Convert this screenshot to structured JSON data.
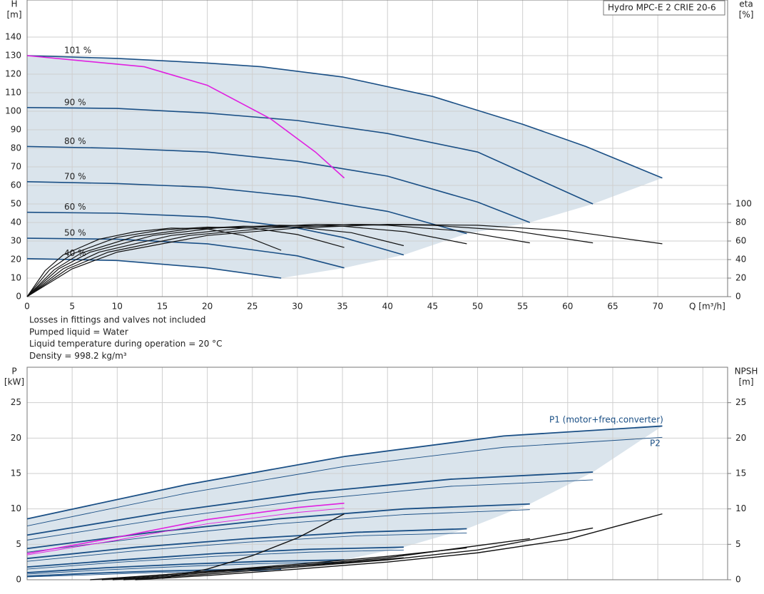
{
  "chart_data": [
    {
      "type": "line",
      "title": "Hydro MPC-E 2 CRIE 20-6",
      "ylabel": [
        "H",
        "[m]"
      ],
      "y2label": [
        "eta",
        "[%]"
      ],
      "xlabel": "Q [m³/h]",
      "xlim": [
        0,
        77.75
      ],
      "xticks": [
        0,
        5,
        10,
        15,
        20,
        25,
        30,
        35,
        40,
        45,
        50,
        55,
        60,
        65,
        70
      ],
      "xtick_labels": true,
      "ylim": [
        0,
        160
      ],
      "yticks": [
        0,
        10,
        20,
        30,
        40,
        50,
        60,
        70,
        80,
        90,
        100,
        110,
        120,
        130,
        140
      ],
      "y2lim": [
        0,
        320
      ],
      "y2ticks": [
        0,
        20,
        40,
        60,
        80,
        100
      ],
      "grid": true,
      "range_color": "#d3dfe9",
      "notes": [
        "Losses in fittings and valves not included",
        "Pumped liquid = Water",
        "Liquid temperature during operation = 20 °C",
        "Density = 998.2 kg/m³"
      ],
      "series": [
        {
          "label": "101 %",
          "color": "#1a4f85",
          "width": 1.6,
          "x": [
            0,
            10,
            20,
            26,
            35,
            45,
            55,
            62,
            70.5
          ],
          "values": [
            130,
            128.5,
            126,
            124,
            118.5,
            108,
            93,
            81,
            64
          ]
        },
        {
          "label": "90 %",
          "color": "#1a4f85",
          "width": 1.6,
          "x": [
            0,
            10,
            20,
            30,
            40,
            50,
            62.8
          ],
          "values": [
            102,
            101.5,
            99,
            95,
            88,
            78,
            50
          ]
        },
        {
          "label": "80 %",
          "color": "#1a4f85",
          "width": 1.6,
          "x": [
            0,
            10,
            20,
            30,
            40,
            50,
            55.8
          ],
          "values": [
            81,
            80,
            78,
            73,
            65,
            51,
            40
          ]
        },
        {
          "label": "70 %",
          "color": "#1a4f85",
          "width": 1.6,
          "x": [
            0,
            10,
            20,
            30,
            40,
            48.8
          ],
          "values": [
            62,
            61,
            59,
            54,
            46,
            34
          ]
        },
        {
          "label": "60 %",
          "color": "#1a4f85",
          "width": 1.6,
          "x": [
            0,
            10,
            20,
            30,
            35,
            41.8
          ],
          "values": [
            45.5,
            45,
            43,
            37,
            32,
            22.5
          ]
        },
        {
          "label": "50 %",
          "color": "#1a4f85",
          "width": 1.6,
          "x": [
            0,
            10,
            20,
            30,
            35.2
          ],
          "values": [
            31.5,
            31,
            28.5,
            22,
            15.5
          ]
        },
        {
          "label": "40 %",
          "color": "#1a4f85",
          "width": 1.6,
          "x": [
            0,
            10,
            20,
            28.2
          ],
          "values": [
            20.5,
            19.5,
            15.5,
            10
          ]
        },
        {
          "color": "#e020e0",
          "width": 1.6,
          "x": [
            0,
            13,
            20,
            27,
            32,
            35.2
          ],
          "values": [
            130,
            124,
            114,
            96,
            78,
            64
          ]
        },
        {
          "axis": "y2",
          "color": "#111111",
          "width": 1.2,
          "x": [
            0,
            5,
            10,
            20,
            30,
            40,
            50,
            60,
            70.5
          ],
          "values": [
            0,
            30,
            48,
            66,
            74,
            78,
            77,
            71,
            57
          ]
        },
        {
          "axis": "y2",
          "color": "#111111",
          "width": 1.2,
          "x": [
            0,
            4.5,
            9,
            18,
            27,
            36,
            45,
            54,
            62.8
          ],
          "values": [
            0,
            30,
            48,
            66,
            74,
            78,
            77,
            71,
            58
          ]
        },
        {
          "axis": "y2",
          "color": "#111111",
          "width": 1.2,
          "x": [
            0,
            4,
            8,
            16,
            24,
            32,
            40,
            48,
            55.8
          ],
          "values": [
            0,
            30,
            48,
            66,
            74,
            78,
            77,
            71,
            58
          ]
        },
        {
          "axis": "y2",
          "color": "#111111",
          "width": 1.2,
          "x": [
            0,
            3.5,
            7,
            14,
            21,
            28,
            35,
            42,
            48.8
          ],
          "values": [
            0,
            30,
            48,
            66,
            74,
            77,
            76,
            70,
            57
          ]
        },
        {
          "axis": "y2",
          "color": "#111111",
          "width": 1.2,
          "x": [
            0,
            3,
            6,
            12,
            18,
            24,
            30,
            36,
            41.8
          ],
          "values": [
            0,
            29,
            47,
            65,
            73,
            76,
            75,
            69,
            55
          ]
        },
        {
          "axis": "y2",
          "color": "#111111",
          "width": 1.2,
          "x": [
            0,
            2.5,
            5,
            10,
            15,
            20,
            25,
            30,
            35.2
          ],
          "values": [
            0,
            29,
            46,
            64,
            72,
            75,
            74,
            67,
            53
          ]
        },
        {
          "axis": "y2",
          "color": "#111111",
          "width": 1.2,
          "x": [
            0,
            2,
            4,
            8,
            12,
            16,
            20,
            24,
            28.2
          ],
          "values": [
            0,
            28,
            45,
            62,
            70,
            74,
            73,
            66,
            50
          ]
        }
      ]
    },
    {
      "type": "line",
      "ylabel": [
        "P",
        "[kW]"
      ],
      "y2label": [
        "NPSH",
        "[m]"
      ],
      "xlim": [
        0,
        77.75
      ],
      "xticks": [
        0,
        5,
        10,
        15,
        20,
        25,
        30,
        35,
        40,
        45,
        50,
        55,
        60,
        65,
        70,
        75
      ],
      "xtick_labels": false,
      "ylim": [
        0,
        30
      ],
      "yticks": [
        0,
        5,
        10,
        15,
        20,
        25
      ],
      "y2lim": [
        0,
        30
      ],
      "y2ticks": [
        0,
        5,
        10,
        15,
        20,
        25
      ],
      "grid": true,
      "range_color": "#d3dfe9",
      "annotations": [
        {
          "text": "P1 (motor+freq.converter)",
          "color": "#1a4f85"
        },
        {
          "text": "P2",
          "color": "#1a4f85"
        }
      ],
      "series": [
        {
          "color": "#1a4f85",
          "width": 1.8,
          "x": [
            0,
            17.6,
            35.25,
            52.9,
            70.5
          ],
          "values": [
            8.6,
            13.4,
            17.4,
            20.3,
            21.7
          ]
        },
        {
          "color": "#1a4f85",
          "width": 1.8,
          "x": [
            0,
            15.7,
            31.4,
            47.1,
            62.8
          ],
          "values": [
            6.3,
            9.6,
            12.3,
            14.2,
            15.2
          ]
        },
        {
          "color": "#1a4f85",
          "width": 1.8,
          "x": [
            0,
            13.95,
            27.9,
            41.85,
            55.8
          ],
          "values": [
            4.4,
            6.7,
            8.6,
            10.0,
            10.7
          ]
        },
        {
          "color": "#1a4f85",
          "width": 1.8,
          "x": [
            0,
            12.2,
            24.4,
            36.6,
            48.8
          ],
          "values": [
            3.0,
            4.6,
            5.8,
            6.7,
            7.2
          ]
        },
        {
          "color": "#1a4f85",
          "width": 1.8,
          "x": [
            0,
            10.45,
            20.9,
            31.35,
            41.8
          ],
          "values": [
            1.8,
            2.8,
            3.7,
            4.3,
            4.6
          ]
        },
        {
          "color": "#1a4f85",
          "width": 1.8,
          "x": [
            0,
            8.8,
            17.6,
            26.4,
            35.2
          ],
          "values": [
            1.0,
            1.7,
            2.2,
            2.6,
            2.8
          ]
        },
        {
          "color": "#1a4f85",
          "width": 1.8,
          "x": [
            0,
            7.05,
            14.1,
            21.15,
            28.2
          ],
          "values": [
            0.5,
            0.9,
            1.2,
            1.4,
            1.5
          ]
        },
        {
          "color": "#1a4f85",
          "width": 0.9,
          "x": [
            0,
            17.6,
            35.25,
            52.9,
            70.5
          ],
          "values": [
            7.6,
            12.2,
            16.0,
            18.7,
            20.1
          ]
        },
        {
          "color": "#1a4f85",
          "width": 0.9,
          "x": [
            0,
            15.7,
            31.4,
            47.1,
            62.8
          ],
          "values": [
            5.6,
            8.7,
            11.3,
            13.2,
            14.1
          ]
        },
        {
          "color": "#1a4f85",
          "width": 0.9,
          "x": [
            0,
            13.95,
            27.9,
            41.85,
            55.8
          ],
          "values": [
            3.9,
            6.1,
            7.9,
            9.2,
            9.9
          ]
        },
        {
          "color": "#1a4f85",
          "width": 0.9,
          "x": [
            0,
            12.2,
            24.4,
            36.6,
            48.8
          ],
          "values": [
            2.6,
            4.1,
            5.3,
            6.2,
            6.6
          ]
        },
        {
          "color": "#1a4f85",
          "width": 0.9,
          "x": [
            0,
            10.45,
            20.9,
            31.35,
            41.8
          ],
          "values": [
            1.5,
            2.5,
            3.3,
            3.9,
            4.2
          ]
        },
        {
          "color": "#1a4f85",
          "width": 0.9,
          "x": [
            0,
            8.8,
            17.6,
            26.4,
            35.2
          ],
          "values": [
            0.8,
            1.4,
            1.9,
            2.3,
            2.5
          ]
        },
        {
          "color": "#1a4f85",
          "width": 0.9,
          "x": [
            0,
            7.05,
            14.1,
            21.15,
            28.2
          ],
          "values": [
            0.4,
            0.7,
            1.0,
            1.2,
            1.3
          ]
        },
        {
          "color": "#e020e0",
          "width": 1.6,
          "x": [
            0,
            10,
            20,
            30,
            35.2
          ],
          "values": [
            3.7,
            6.0,
            8.5,
            10.2,
            10.8
          ]
        },
        {
          "color": "#e020e0",
          "width": 0.9,
          "x": [
            0,
            10,
            20,
            30,
            35.2
          ],
          "values": [
            3.5,
            5.6,
            7.9,
            9.5,
            10.1
          ]
        },
        {
          "axis": "y2",
          "color": "#111111",
          "width": 1.4,
          "x": [
            12,
            20,
            30,
            40,
            50,
            60,
            70.5
          ],
          "values": [
            0,
            0.6,
            1.5,
            2.5,
            3.8,
            5.7,
            9.3
          ]
        },
        {
          "axis": "y2",
          "color": "#111111",
          "width": 1.4,
          "x": [
            10.7,
            20,
            30,
            40,
            50,
            62.8
          ],
          "values": [
            0,
            0.8,
            1.8,
            2.8,
            4.2,
            7.3
          ]
        },
        {
          "axis": "y2",
          "color": "#111111",
          "width": 1.4,
          "x": [
            9.5,
            20,
            30,
            40,
            55.8
          ],
          "values": [
            0,
            1.0,
            2.0,
            3.1,
            5.8
          ]
        },
        {
          "axis": "y2",
          "color": "#111111",
          "width": 1.4,
          "x": [
            8.3,
            20,
            30,
            40,
            48.8
          ],
          "values": [
            0,
            1.2,
            2.2,
            3.3,
            4.5
          ]
        },
        {
          "axis": "y2",
          "color": "#111111",
          "width": 1.4,
          "x": [
            7,
            15,
            25,
            35,
            41.8
          ],
          "values": [
            0,
            0.7,
            1.6,
            2.4,
            3.1
          ]
        },
        {
          "axis": "y2",
          "color": "#111111",
          "width": 1.4,
          "x": [
            15,
            20,
            25,
            30,
            35.2
          ],
          "values": [
            0.2,
            1.5,
            3.4,
            5.9,
            9.3
          ]
        }
      ]
    }
  ]
}
